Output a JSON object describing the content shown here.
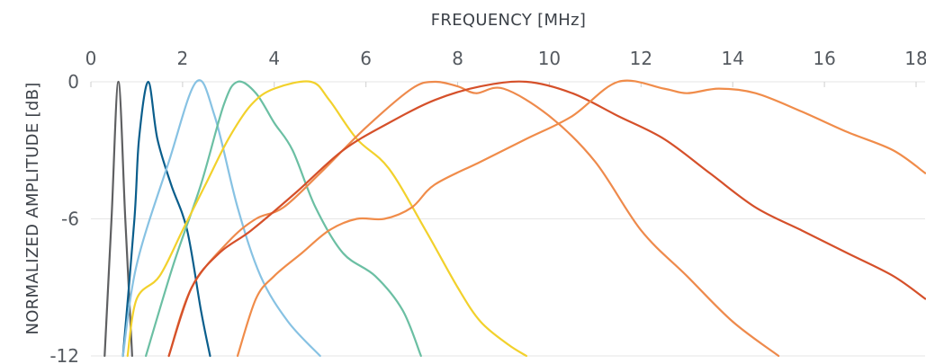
{
  "chart_data": {
    "type": "line",
    "title": "",
    "xlabel": "FREQUENCY [MHz]",
    "ylabel": "NORMALIZED AMPLITUDE [dB]",
    "xlim": [
      0,
      18
    ],
    "ylim": [
      -12,
      0
    ],
    "xticks": [
      0,
      2,
      4,
      6,
      8,
      10,
      12,
      14,
      16,
      18
    ],
    "xtick_labels": [
      "0",
      "2",
      "4",
      "6",
      "8",
      "10",
      "12",
      "14",
      "16",
      "18"
    ],
    "yticks": [
      0,
      -6,
      -12
    ],
    "ytick_labels": [
      "0",
      "-6",
      "-12"
    ],
    "x_axis_position": "top",
    "grid": true,
    "legend": "none",
    "series": [
      {
        "color": "#5f6062",
        "points": [
          [
            0.3,
            -12.0
          ],
          [
            0.45,
            -6.0
          ],
          [
            0.6,
            0.0
          ],
          [
            0.75,
            -6.0
          ],
          [
            0.9,
            -12.0
          ]
        ]
      },
      {
        "color": "#0a5e8c",
        "points": [
          [
            0.7,
            -12.0
          ],
          [
            0.95,
            -6.0
          ],
          [
            1.05,
            -2.5
          ],
          [
            1.25,
            0.0
          ],
          [
            1.45,
            -2.5
          ],
          [
            1.75,
            -4.5
          ],
          [
            2.1,
            -6.5
          ],
          [
            2.4,
            -10.0
          ],
          [
            2.6,
            -12.0
          ]
        ]
      },
      {
        "color": "#87c2e3",
        "points": [
          [
            0.7,
            -12.0
          ],
          [
            1.0,
            -8.0
          ],
          [
            1.7,
            -3.5
          ],
          [
            2.3,
            0.0
          ],
          [
            2.7,
            -1.5
          ],
          [
            3.2,
            -5.5
          ],
          [
            3.7,
            -8.5
          ],
          [
            4.3,
            -10.5
          ],
          [
            5.0,
            -12.0
          ]
        ]
      },
      {
        "color": "#6bbfa3",
        "points": [
          [
            1.2,
            -12.0
          ],
          [
            1.8,
            -8.0
          ],
          [
            2.4,
            -4.5
          ],
          [
            2.9,
            -1.0
          ],
          [
            3.2,
            0.0
          ],
          [
            3.6,
            -0.5
          ],
          [
            4.0,
            -1.8
          ],
          [
            4.4,
            -3.0
          ],
          [
            4.9,
            -5.5
          ],
          [
            5.5,
            -7.5
          ],
          [
            6.2,
            -8.5
          ],
          [
            6.8,
            -10.0
          ],
          [
            7.2,
            -12.0
          ]
        ]
      },
      {
        "color": "#f2d12c",
        "points": [
          [
            0.8,
            -12.0
          ],
          [
            1.0,
            -9.5
          ],
          [
            1.5,
            -8.5
          ],
          [
            2.0,
            -6.5
          ],
          [
            2.5,
            -4.5
          ],
          [
            3.0,
            -2.5
          ],
          [
            3.5,
            -1.0
          ],
          [
            4.0,
            -0.3
          ],
          [
            4.8,
            0.0
          ],
          [
            5.2,
            -0.8
          ],
          [
            5.8,
            -2.5
          ],
          [
            6.5,
            -3.8
          ],
          [
            7.3,
            -6.5
          ],
          [
            8.0,
            -9.0
          ],
          [
            8.5,
            -10.5
          ],
          [
            9.1,
            -11.5
          ],
          [
            9.5,
            -12.0
          ]
        ]
      },
      {
        "color": "#ee8a4c",
        "points": [
          [
            1.7,
            -12.0
          ],
          [
            2.2,
            -9.0
          ],
          [
            3.0,
            -7.0
          ],
          [
            3.6,
            -6.0
          ],
          [
            4.2,
            -5.5
          ],
          [
            5.0,
            -4.0
          ],
          [
            6.0,
            -2.0
          ],
          [
            7.0,
            -0.3
          ],
          [
            7.5,
            0.0
          ],
          [
            8.0,
            -0.2
          ],
          [
            8.4,
            -0.5
          ],
          [
            9.0,
            -0.3
          ],
          [
            10.0,
            -1.5
          ],
          [
            11.0,
            -3.5
          ],
          [
            12.0,
            -6.5
          ],
          [
            13.0,
            -8.5
          ],
          [
            14.0,
            -10.5
          ],
          [
            15.0,
            -12.0
          ]
        ]
      },
      {
        "color": "#d5502a",
        "points": [
          [
            1.7,
            -12.0
          ],
          [
            2.2,
            -9.0
          ],
          [
            2.8,
            -7.5
          ],
          [
            3.5,
            -6.5
          ],
          [
            4.5,
            -4.8
          ],
          [
            5.5,
            -3.0
          ],
          [
            6.5,
            -1.8
          ],
          [
            7.5,
            -0.8
          ],
          [
            8.5,
            -0.2
          ],
          [
            9.5,
            0.0
          ],
          [
            10.5,
            -0.5
          ],
          [
            11.5,
            -1.5
          ],
          [
            12.5,
            -2.5
          ],
          [
            13.5,
            -4.0
          ],
          [
            14.5,
            -5.5
          ],
          [
            15.5,
            -6.5
          ],
          [
            16.5,
            -7.5
          ],
          [
            17.5,
            -8.5
          ],
          [
            18.2,
            -9.5
          ]
        ]
      },
      {
        "color": "#f08c4a",
        "points": [
          [
            3.2,
            -12.0
          ],
          [
            3.6,
            -9.5
          ],
          [
            4.0,
            -8.5
          ],
          [
            4.6,
            -7.5
          ],
          [
            5.2,
            -6.5
          ],
          [
            5.8,
            -6.0
          ],
          [
            6.4,
            -6.0
          ],
          [
            7.0,
            -5.5
          ],
          [
            7.5,
            -4.5
          ],
          [
            8.5,
            -3.5
          ],
          [
            9.5,
            -2.5
          ],
          [
            10.5,
            -1.5
          ],
          [
            11.5,
            0.0
          ],
          [
            12.5,
            -0.3
          ],
          [
            13.0,
            -0.5
          ],
          [
            13.7,
            -0.3
          ],
          [
            14.5,
            -0.5
          ],
          [
            15.5,
            -1.3
          ],
          [
            16.5,
            -2.2
          ],
          [
            17.5,
            -3.0
          ],
          [
            18.2,
            -4.0
          ]
        ]
      }
    ]
  }
}
